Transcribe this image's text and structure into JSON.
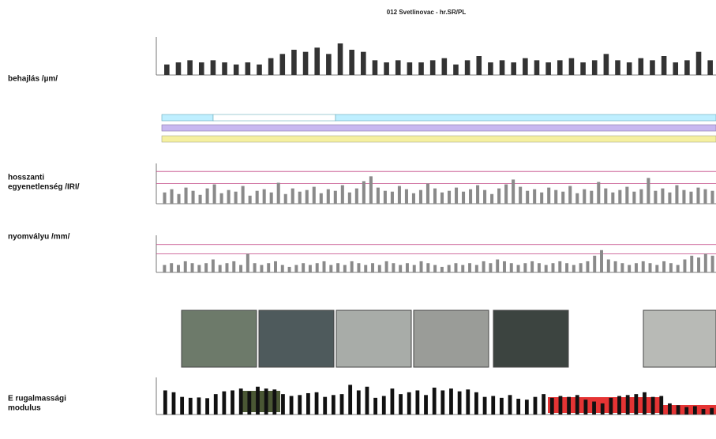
{
  "chart_data": [
    {
      "type": "bar",
      "title": "012 Svetlinovac - hr.SR/PL",
      "side_label": [
        "behajlás /µm/"
      ],
      "color": "#333333",
      "ylim": [
        0,
        1.8
      ],
      "values": [
        0.5,
        0.6,
        0.7,
        0.6,
        0.7,
        0.6,
        0.5,
        0.6,
        0.5,
        0.8,
        1.0,
        1.2,
        1.1,
        1.3,
        1.0,
        1.5,
        1.2,
        1.1,
        0.7,
        0.6,
        0.7,
        0.6,
        0.6,
        0.7,
        0.8,
        0.5,
        0.7,
        0.9,
        0.6,
        0.7,
        0.6,
        0.8,
        0.7,
        0.6,
        0.7,
        0.8,
        0.6,
        0.7,
        1.0,
        0.7,
        0.6,
        0.8,
        0.7,
        0.9,
        0.6,
        0.7,
        1.1,
        0.7
      ]
    },
    {
      "type": "bar",
      "side_label": [
        "hosszanti",
        "egyenetlenség /IRI/"
      ],
      "color": "#8a8a8a",
      "ylim": [
        0,
        5
      ],
      "reference_lines": [
        2.5,
        4
      ],
      "reference_color": "#c04080",
      "values": [
        1.4,
        1.8,
        1.2,
        2.0,
        1.6,
        1.1,
        1.9,
        2.4,
        1.3,
        1.7,
        1.5,
        2.2,
        1.0,
        1.6,
        1.8,
        1.4,
        2.6,
        1.2,
        1.9,
        1.5,
        1.7,
        2.1,
        1.3,
        1.8,
        1.6,
        2.3,
        1.4,
        1.9,
        2.8,
        3.4,
        2.0,
        1.6,
        1.5,
        2.2,
        1.8,
        1.3,
        1.7,
        2.5,
        1.9,
        1.4,
        1.6,
        2.0,
        1.5,
        1.8,
        2.3,
        1.7,
        1.2,
        1.9,
        2.4,
        3.0,
        2.1,
        1.6,
        1.8,
        1.4,
        2.0,
        1.7,
        1.5,
        2.2,
        1.3,
        1.8,
        1.6,
        2.7,
        1.9,
        1.4,
        1.7,
        2.1,
        1.5,
        1.8,
        3.2,
        1.6,
        1.9,
        1.4,
        2.3,
        1.7,
        1.5,
        2.0,
        1.8,
        1.6
      ]
    },
    {
      "type": "bar",
      "side_label": [
        "nyomvályu /mm/"
      ],
      "color": "#8a8a8a",
      "ylim": [
        0,
        20
      ],
      "reference_lines": [
        10,
        15
      ],
      "reference_color": "#c04080",
      "values": [
        4,
        5,
        4,
        6,
        5,
        4,
        5,
        7,
        4,
        5,
        6,
        4,
        10,
        5,
        4,
        5,
        6,
        4,
        3,
        4,
        5,
        4,
        5,
        6,
        4,
        5,
        4,
        6,
        5,
        4,
        5,
        4,
        6,
        5,
        4,
        5,
        4,
        6,
        5,
        4,
        3,
        4,
        5,
        4,
        5,
        4,
        6,
        5,
        7,
        6,
        5,
        4,
        5,
        6,
        5,
        4,
        5,
        6,
        5,
        4,
        5,
        6,
        9,
        12,
        7,
        6,
        5,
        4,
        5,
        6,
        5,
        4,
        6,
        5,
        4,
        7,
        9,
        8,
        10,
        9
      ]
    },
    {
      "type": "bar",
      "side_label": [
        "E rugalmassági",
        "modulus"
      ],
      "color": "#111111",
      "ylim": [
        0,
        200
      ],
      "values": [
        130,
        120,
        95,
        90,
        92,
        88,
        110,
        125,
        130,
        140,
        125,
        150,
        140,
        135,
        110,
        100,
        105,
        115,
        120,
        95,
        105,
        110,
        160,
        130,
        150,
        90,
        100,
        140,
        110,
        120,
        130,
        105,
        145,
        130,
        140,
        125,
        135,
        120,
        95,
        100,
        90,
        105,
        85,
        80,
        95,
        110,
        90,
        100,
        95,
        105,
        80,
        70,
        60,
        90,
        100,
        105,
        110,
        120,
        95,
        100,
        60,
        50,
        40,
        45,
        30,
        35
      ]
    }
  ]
}
